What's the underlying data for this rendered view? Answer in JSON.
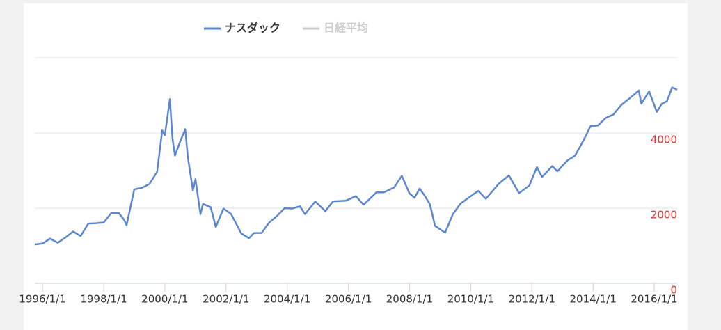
{
  "chart_data": {
    "type": "line",
    "series": [
      {
        "name": "ナスダック",
        "color": "#5b86d0",
        "visible": true,
        "x": [
          "1995/10/1",
          "1996/1/1",
          "1996/4/1",
          "1996/7/1",
          "1996/10/1",
          "1997/1/1",
          "1997/4/1",
          "1997/7/1",
          "1997/10/1",
          "1998/1/1",
          "1998/4/1",
          "1998/7/1",
          "1998/9/1",
          "1998/10/1",
          "1999/1/1",
          "1999/4/1",
          "1999/7/1",
          "1999/10/1",
          "1999/12/1",
          "2000/1/1",
          "2000/3/1",
          "2000/4/1",
          "2000/5/1",
          "2000/7/1",
          "2000/9/1",
          "2000/10/1",
          "2000/12/1",
          "2001/1/1",
          "2001/3/1",
          "2001/4/1",
          "2001/7/1",
          "2001/9/1",
          "2001/12/1",
          "2002/3/1",
          "2002/6/1",
          "2002/7/1",
          "2002/10/1",
          "2002/12/1",
          "2003/3/1",
          "2003/6/1",
          "2003/9/1",
          "2003/12/1",
          "2004/3/1",
          "2004/6/1",
          "2004/8/1",
          "2004/12/1",
          "2005/4/1",
          "2005/7/1",
          "2005/12/1",
          "2006/4/1",
          "2006/7/1",
          "2006/12/1",
          "2007/3/1",
          "2007/7/1",
          "2007/10/1",
          "2008/1/1",
          "2008/3/1",
          "2008/5/1",
          "2008/7/1",
          "2008/9/1",
          "2008/11/1",
          "2009/3/1",
          "2009/6/1",
          "2009/9/1",
          "2009/12/1",
          "2010/4/1",
          "2010/7/1",
          "2010/12/1",
          "2011/4/1",
          "2011/8/1",
          "2011/12/1",
          "2012/3/1",
          "2012/5/1",
          "2012/9/1",
          "2012/11/1",
          "2013/3/1",
          "2013/6/1",
          "2013/9/1",
          "2013/12/1",
          "2014/3/1",
          "2014/6/1",
          "2014/9/1",
          "2014/12/1",
          "2015/3/1",
          "2015/7/1",
          "2015/8/1",
          "2015/11/1",
          "2016/2/1",
          "2016/4/1",
          "2016/6/1",
          "2016/8/1",
          "2016/10/1"
        ],
        "values": [
          1036,
          1060,
          1190,
          1080,
          1220,
          1380,
          1260,
          1590,
          1600,
          1620,
          1870,
          1870,
          1690,
          1550,
          2500,
          2540,
          2640,
          2970,
          4069,
          3940,
          4900,
          3860,
          3400,
          3770,
          4100,
          3370,
          2470,
          2770,
          1840,
          2110,
          2030,
          1500,
          1990,
          1850,
          1460,
          1330,
          1200,
          1340,
          1340,
          1620,
          1790,
          2000,
          1990,
          2050,
          1840,
          2180,
          1920,
          2180,
          2200,
          2320,
          2090,
          2420,
          2420,
          2550,
          2860,
          2390,
          2280,
          2520,
          2330,
          2100,
          1530,
          1350,
          1840,
          2120,
          2270,
          2460,
          2250,
          2650,
          2870,
          2400,
          2600,
          3090,
          2830,
          3120,
          2980,
          3270,
          3400,
          3770,
          4180,
          4200,
          4400,
          4490,
          4740,
          4900,
          5130,
          4780,
          5110,
          4560,
          4780,
          4840,
          5210,
          5150
        ]
      },
      {
        "name": "日経平均",
        "color": "#cccccc",
        "visible": false
      }
    ],
    "xlim": [
      "1995/10/1",
      "2016/10/1"
    ],
    "xticks": [
      "1996/1/1",
      "1998/1/1",
      "2000/1/1",
      "2002/1/1",
      "2004/1/1",
      "2006/1/1",
      "2008/1/1",
      "2010/1/1",
      "2012/1/1",
      "2014/1/1",
      "2016/1/1"
    ],
    "ylim": [
      0,
      6000
    ],
    "yticks": [
      0,
      2000,
      4000
    ],
    "grid": true,
    "ytick_color": "#d9302c"
  }
}
